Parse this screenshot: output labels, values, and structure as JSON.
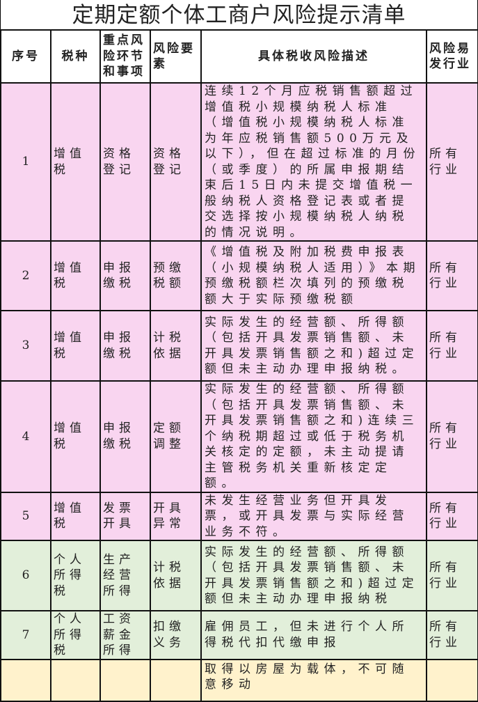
{
  "title": "定期定额个体工商户风险提示清单",
  "headers": [
    "序号",
    "税种",
    "重点风险环节和事项",
    "风险要素",
    "具体税收风险描述",
    "风险易发行业"
  ],
  "rows": [
    {
      "no": "1",
      "tax": "增值税",
      "stage": "资格登记",
      "element": "资格登记",
      "desc": "连续12个月应税销售额超过增值税小规模纳税人标准（增值税小规模纳税人标准为年应税销售额500万元及以下），但在超过标准的月份（或季度）的所属申报期结束后15日内未提交增值税一般纳税人资格登记表或者提交选择按小规模纳税人纳税的情况说明。",
      "industry": "所有行业"
    },
    {
      "no": "2",
      "tax": "增值税",
      "stage": "申报缴税",
      "element": "预缴税额",
      "desc": "《增值税及附加税费申报表（小规模纳税人适用）》本期预缴税额栏次填列的预缴税额大于实际预缴税额",
      "industry": "所有行业"
    },
    {
      "no": "3",
      "tax": "增值税",
      "stage": "申报缴税",
      "element": "计税依据",
      "desc": "实际发生的经营额、所得额（包括开具发票销售额、未开具发票销售额之和)超过定额但未主动办理申报纳税。",
      "industry": "所有行业"
    },
    {
      "no": "4",
      "tax": "增值税",
      "stage": "申报缴税",
      "element": "定额调整",
      "desc": "实际发生的经营额、所得额（包括开具发票销售额、未开具发票销售额之和)连续三个纳税期超过或低于税务机关核定的定额，未主动提请主管税务机关重新核定定额。",
      "industry": "所有行业"
    },
    {
      "no": "5",
      "tax": "增值税",
      "stage": "发票开具",
      "element": "开具异常",
      "desc": "未发生经营业务但开具发票，或开具发票与实际经营业务不符。",
      "industry": "所有行业"
    },
    {
      "no": "6",
      "tax": "个人所得税",
      "stage": "生产经营所得",
      "element": "计税依据",
      "desc": "实际发生的经营额、所得额（包括开具发票销售额、未开具发票销售额之和)超过定额但未主动办理申报纳税",
      "industry": "所有行业"
    },
    {
      "no": "7",
      "tax": "个人所得税",
      "stage": "工资薪金所得",
      "element": "扣缴义务",
      "desc": "雇佣员工，但未进行个人所得税代扣代缴申报",
      "industry": "所有行业"
    },
    {
      "desc": "取得以房屋为载体，不可随意移动"
    }
  ],
  "colors": {
    "vat_rows": "#f9d5f0",
    "iit_rows": "#e2efda",
    "next_rows": "#fff2cc"
  }
}
